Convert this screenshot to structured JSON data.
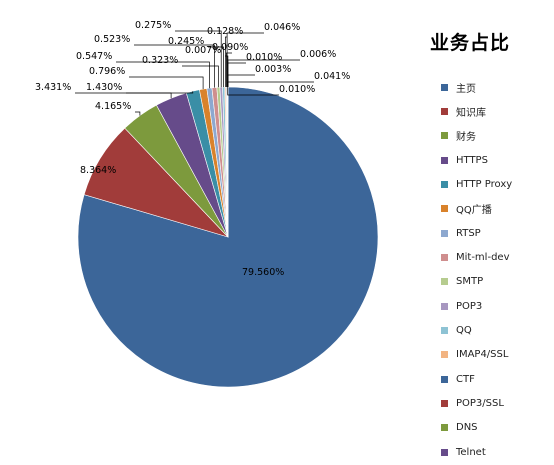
{
  "chart_data": {
    "type": "pie",
    "title": "业务占比",
    "categories": [
      "主页",
      "知识库",
      "财务",
      "HTTPS",
      "HTTP Proxy",
      "QQ广播",
      "RTSP",
      "Mit-ml-dev",
      "SMTP",
      "POP3",
      "QQ",
      "IMAP4/SSL",
      "CTF",
      "POP3/SSL",
      "DNS",
      "Telnet",
      "",
      "",
      "",
      ""
    ],
    "values": [
      79.56,
      8.364,
      4.165,
      3.431,
      1.43,
      0.796,
      0.547,
      0.523,
      0.323,
      0.275,
      0.245,
      0.128,
      0.09,
      0.046,
      0.041,
      0.01,
      0.01,
      0.007,
      0.006,
      0.003
    ],
    "labels": [
      "79.560%",
      "8.364%",
      "4.165%",
      "3.431%",
      "1.430%",
      "0.796%",
      "0.547%",
      "0.523%",
      "0.323%",
      "0.275%",
      "0.245%",
      "0.128%",
      "0.090%",
      "0.046%",
      "0.041%",
      "0.010%",
      "0.010%",
      "0.007%",
      "0.006%",
      "0.003%"
    ],
    "colors": [
      "#3C6699",
      "#A13C3A",
      "#7D9A3D",
      "#664B8A",
      "#3A8EA6",
      "#D9822B",
      "#8DA8CF",
      "#CF8E8E",
      "#B6CC8F",
      "#A797C0",
      "#8EC3D4",
      "#F2B482",
      "#3C6699",
      "#A13C3A",
      "#7D9A3D",
      "#664B8A",
      "#3A8EA6",
      "#D9822B",
      "#8DA8CF",
      "#CF8E8E"
    ],
    "legend_placement": "right"
  }
}
